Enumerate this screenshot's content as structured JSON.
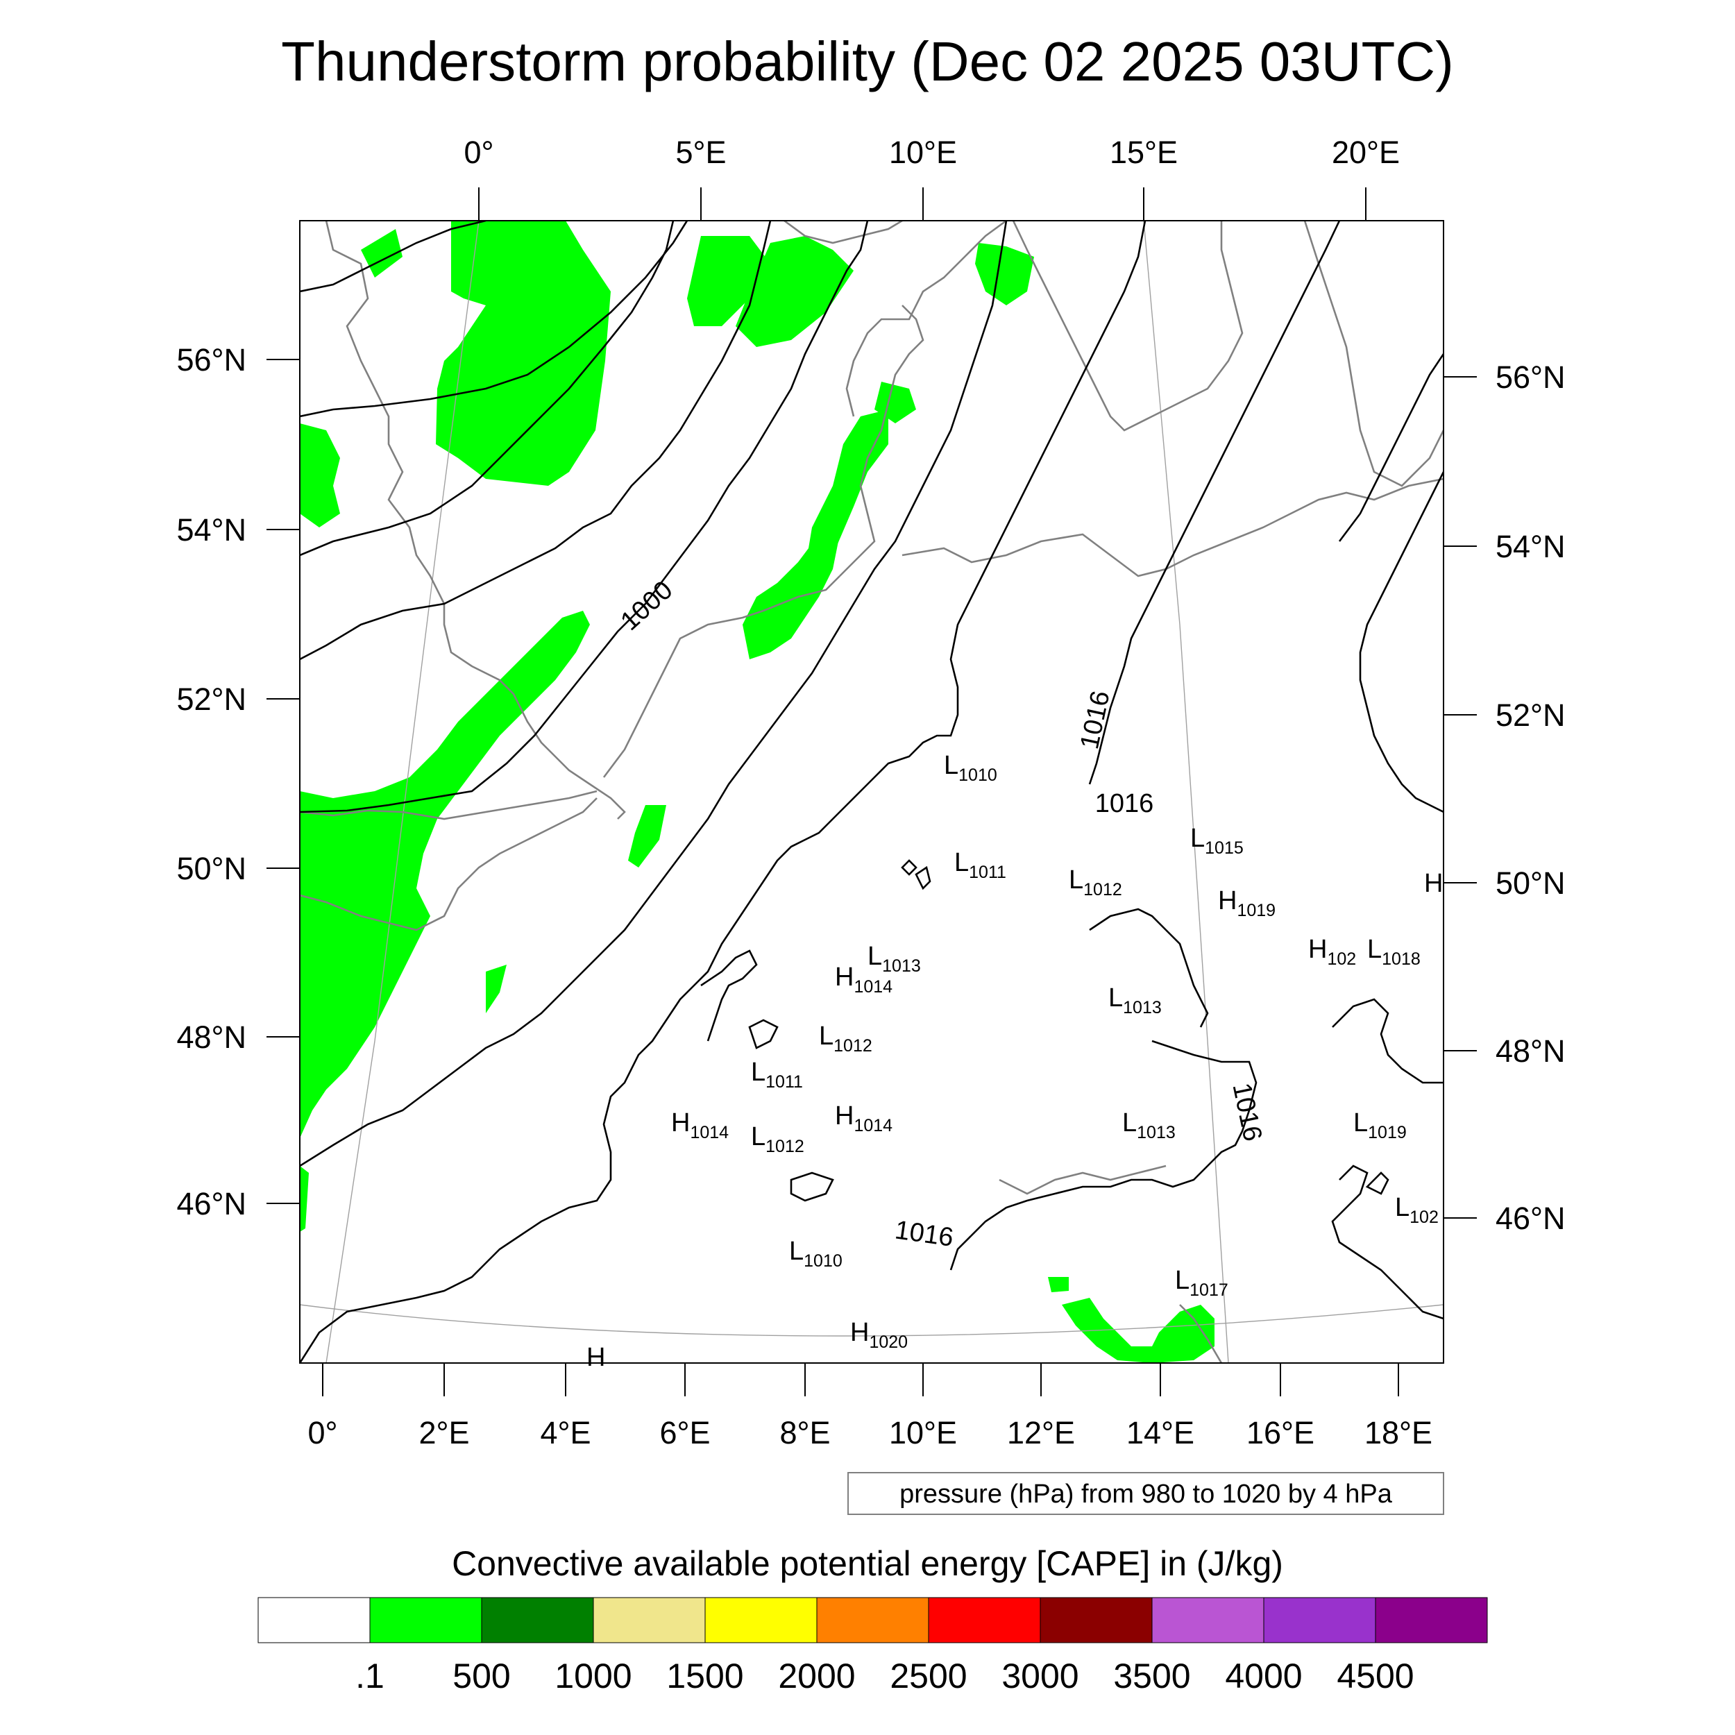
{
  "title": "Thunderstorm probability (Dec 02 2025 03UTC)",
  "map": {
    "top_lon_labels": [
      "0°",
      "5°E",
      "10°E",
      "15°E",
      "20°E"
    ],
    "bottom_lon_labels": [
      "0°",
      "2°E",
      "4°E",
      "6°E",
      "8°E",
      "10°E",
      "12°E",
      "14°E",
      "16°E",
      "18°E"
    ],
    "left_lat_labels": [
      "56°N",
      "54°N",
      "52°N",
      "50°N",
      "48°N",
      "46°N"
    ],
    "right_lat_labels": [
      "56°N",
      "54°N",
      "52°N",
      "50°N",
      "48°N",
      "46°N"
    ],
    "isobar_labels": [
      "1000",
      "1016",
      "1016",
      "1016",
      "1016"
    ],
    "pressure_systems": [
      {
        "letter": "L",
        "value": "1010"
      },
      {
        "letter": "L",
        "value": "1011"
      },
      {
        "letter": "L",
        "value": "1012"
      },
      {
        "letter": "L",
        "value": "1015"
      },
      {
        "letter": "H",
        "value": "1019"
      },
      {
        "letter": "H",
        "value": ""
      },
      {
        "letter": "H",
        "value": "102"
      },
      {
        "letter": "L",
        "value": "1018"
      },
      {
        "letter": "L",
        "value": "1013"
      },
      {
        "letter": "H",
        "value": "1014"
      },
      {
        "letter": "L",
        "value": "1013"
      },
      {
        "letter": "L",
        "value": "1012"
      },
      {
        "letter": "L",
        "value": "1011"
      },
      {
        "letter": "H",
        "value": "1014"
      },
      {
        "letter": "L",
        "value": "1012"
      },
      {
        "letter": "H",
        "value": "1014"
      },
      {
        "letter": "L",
        "value": "1013"
      },
      {
        "letter": "L",
        "value": "1019"
      },
      {
        "letter": "L",
        "value": "102"
      },
      {
        "letter": "L",
        "value": "1010"
      },
      {
        "letter": "L",
        "value": "1017"
      },
      {
        "letter": "H",
        "value": "1020"
      },
      {
        "letter": "H",
        "value": ""
      }
    ],
    "contour_note": "pressure (hPa) from 980 to 1020 by 4 hPa",
    "colors": {
      "cape_low": "#00ff00",
      "coastline": "#808080",
      "isobar": "#000000"
    }
  },
  "colorbar": {
    "title": "Convective available potential energy [CAPE] in (J/kg)",
    "colors": [
      "#ffffff",
      "#00ff00",
      "#008000",
      "#f0e68c",
      "#ffff00",
      "#ff8000",
      "#ff0000",
      "#8b0000",
      "#ba55d3",
      "#9932cc",
      "#8b008b"
    ],
    "labels": [
      ".1",
      "500",
      "1000",
      "1500",
      "2000",
      "2500",
      "3000",
      "3500",
      "4000",
      "4500"
    ]
  }
}
